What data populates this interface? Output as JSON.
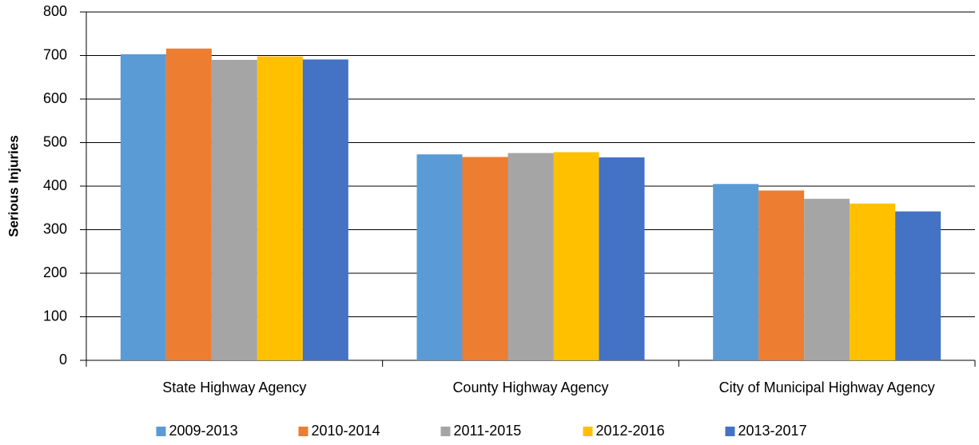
{
  "chart_data": {
    "type": "bar",
    "ylabel": "Serious Injuries",
    "categories": [
      "State Highway Agency",
      "County Highway Agency",
      "City of Municipal Highway Agency"
    ],
    "series": [
      {
        "name": "2009-2013",
        "color": "#5b9bd5",
        "values": [
          703,
          473,
          405
        ]
      },
      {
        "name": "2010-2014",
        "color": "#ed7d31",
        "values": [
          716,
          467,
          390
        ]
      },
      {
        "name": "2011-2015",
        "color": "#a5a5a5",
        "values": [
          690,
          476,
          371
        ]
      },
      {
        "name": "2012-2016",
        "color": "#ffc000",
        "values": [
          698,
          478,
          360
        ]
      },
      {
        "name": "2013-2017",
        "color": "#4472c4",
        "values": [
          691,
          466,
          342
        ]
      }
    ],
    "ylim": [
      0,
      800
    ],
    "yticks": [
      0,
      100,
      200,
      300,
      400,
      500,
      600,
      700,
      800
    ],
    "grid": true,
    "legend": "bottom"
  }
}
